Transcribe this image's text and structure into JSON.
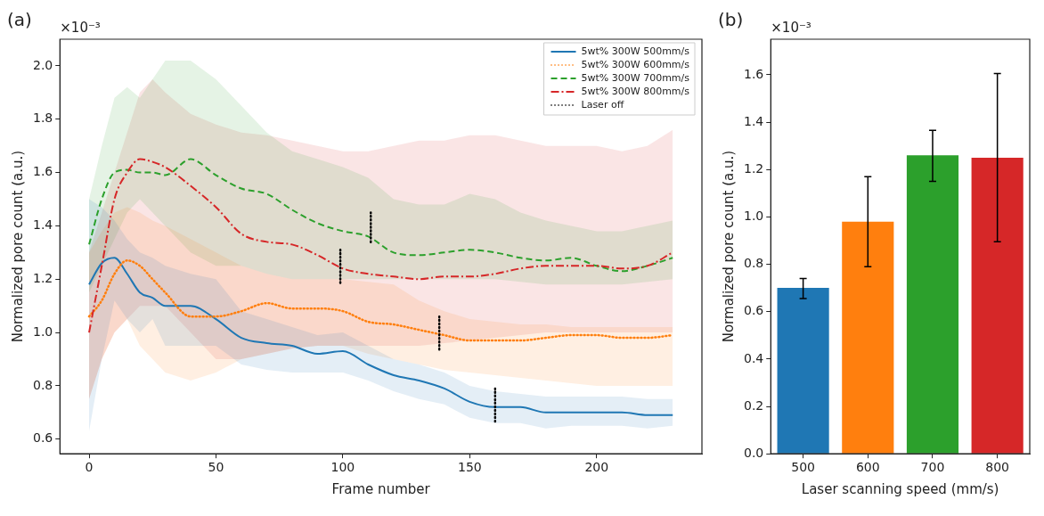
{
  "chart_data": [
    {
      "type": "line",
      "title": "(a)",
      "xlabel": "Frame number",
      "ylabel": "Normalized pore count (a.u.)",
      "annotations": [
        "×10⁻³"
      ],
      "x": [
        0,
        5,
        10,
        15,
        20,
        25,
        30,
        40,
        50,
        60,
        70,
        80,
        90,
        100,
        110,
        120,
        130,
        140,
        150,
        160,
        170,
        180,
        190,
        200,
        210,
        220,
        230
      ],
      "xlim": [
        -11.5,
        241.5
      ],
      "ylim": [
        0.545,
        2.1
      ],
      "xticks": [
        0,
        50,
        100,
        150,
        200
      ],
      "yticks": [
        0.6,
        0.8,
        {
          "value": 1,
          "label": "1.0"
        },
        1.2,
        1.4,
        1.6,
        1.8,
        {
          "value": 2,
          "label": "2.0"
        }
      ],
      "legend": "top right",
      "series": [
        {
          "name": "5wt% 300W 500mm/s",
          "color": "#1f77b4",
          "line_style": "solid",
          "values": [
            1.18,
            1.26,
            1.28,
            1.22,
            1.15,
            1.13,
            1.1,
            1.1,
            1.05,
            0.98,
            0.96,
            0.95,
            0.92,
            0.93,
            0.88,
            0.84,
            0.82,
            0.79,
            0.74,
            0.72,
            0.72,
            0.7,
            0.7,
            0.7,
            0.7,
            0.69,
            0.69
          ],
          "lower": [
            0.63,
            0.9,
            1.12,
            1.05,
            1.0,
            1.05,
            0.95,
            0.95,
            0.95,
            0.88,
            0.86,
            0.85,
            0.85,
            0.85,
            0.82,
            0.78,
            0.75,
            0.73,
            0.68,
            0.66,
            0.66,
            0.64,
            0.65,
            0.65,
            0.65,
            0.64,
            0.65
          ],
          "upper": [
            1.5,
            1.47,
            1.42,
            1.35,
            1.3,
            1.28,
            1.25,
            1.22,
            1.2,
            1.08,
            1.05,
            1.02,
            0.99,
            1.0,
            0.95,
            0.9,
            0.88,
            0.85,
            0.8,
            0.78,
            0.77,
            0.76,
            0.76,
            0.76,
            0.76,
            0.75,
            0.75
          ]
        },
        {
          "name": "5wt% 300W 600mm/s",
          "color": "#ff7f0e",
          "line_style": "dotted",
          "values": [
            1.06,
            1.12,
            1.22,
            1.27,
            1.25,
            1.2,
            1.15,
            1.06,
            1.06,
            1.08,
            1.11,
            1.09,
            1.09,
            1.08,
            1.04,
            1.03,
            1.01,
            0.99,
            0.97,
            0.97,
            0.97,
            0.98,
            0.99,
            0.99,
            0.98,
            0.98,
            0.99
          ],
          "lower": [
            0.75,
            0.9,
            1.0,
            1.05,
            0.95,
            0.9,
            0.85,
            0.82,
            0.85,
            0.9,
            0.92,
            0.94,
            0.95,
            0.95,
            0.92,
            0.9,
            0.88,
            0.86,
            0.85,
            0.84,
            0.83,
            0.82,
            0.81,
            0.8,
            0.8,
            0.8,
            0.8
          ],
          "upper": [
            1.3,
            1.38,
            1.45,
            1.47,
            1.45,
            1.42,
            1.4,
            1.35,
            1.3,
            1.25,
            1.22,
            1.2,
            1.2,
            1.2,
            1.19,
            1.18,
            1.12,
            1.08,
            1.05,
            1.04,
            1.03,
            1.03,
            1.02,
            1.02,
            1.02,
            1.02,
            1.02
          ]
        },
        {
          "name": "5wt% 300W 700mm/s",
          "color": "#2ca02c",
          "line_style": "dashed",
          "values": [
            1.33,
            1.5,
            1.6,
            1.61,
            1.6,
            1.6,
            1.59,
            1.65,
            1.59,
            1.54,
            1.52,
            1.46,
            1.41,
            1.38,
            1.36,
            1.3,
            1.29,
            1.3,
            1.31,
            1.3,
            1.28,
            1.27,
            1.28,
            1.25,
            1.23,
            1.25,
            1.28
          ],
          "lower": [
            1.15,
            1.25,
            1.35,
            1.45,
            1.5,
            1.45,
            1.4,
            1.3,
            1.25,
            1.25,
            1.22,
            1.2,
            1.2,
            1.2,
            1.2,
            1.2,
            1.2,
            1.2,
            1.2,
            1.2,
            1.19,
            1.18,
            1.18,
            1.18,
            1.18,
            1.19,
            1.2
          ],
          "upper": [
            1.5,
            1.7,
            1.88,
            1.92,
            1.88,
            1.95,
            2.02,
            2.02,
            1.95,
            1.85,
            1.75,
            1.68,
            1.65,
            1.62,
            1.58,
            1.5,
            1.48,
            1.48,
            1.52,
            1.5,
            1.45,
            1.42,
            1.4,
            1.38,
            1.38,
            1.4,
            1.42
          ]
        },
        {
          "name": "5wt% 300W 800mm/s",
          "color": "#d62728",
          "line_style": "dashdot",
          "values": [
            1.0,
            1.25,
            1.5,
            1.6,
            1.65,
            1.64,
            1.62,
            1.55,
            1.47,
            1.37,
            1.34,
            1.33,
            1.29,
            1.24,
            1.22,
            1.21,
            1.2,
            1.21,
            1.21,
            1.22,
            1.24,
            1.25,
            1.25,
            1.25,
            1.24,
            1.25,
            1.3
          ],
          "lower": [
            0.75,
            0.9,
            1.0,
            1.05,
            1.1,
            1.1,
            1.1,
            1.0,
            0.9,
            0.9,
            0.92,
            0.94,
            0.95,
            0.95,
            0.95,
            0.95,
            0.95,
            0.96,
            0.97,
            0.98,
            0.99,
            1.0,
            1.0,
            1.0,
            1.0,
            1.0,
            1.0
          ],
          "upper": [
            1.3,
            1.45,
            1.6,
            1.75,
            1.9,
            1.95,
            1.9,
            1.82,
            1.78,
            1.75,
            1.74,
            1.72,
            1.7,
            1.68,
            1.68,
            1.7,
            1.72,
            1.72,
            1.74,
            1.74,
            1.72,
            1.7,
            1.7,
            1.7,
            1.68,
            1.7,
            1.76
          ]
        },
        {
          "name": "Laser off",
          "color": "#000000",
          "line_style": "dotted",
          "x": [
            99,
            99,
            105,
            111,
            111,
            124,
            138,
            138,
            149,
            160,
            160
          ],
          "values": [
            1.31,
            1.18,
            null,
            1.45,
            1.33,
            null,
            1.06,
            0.93,
            null,
            0.79,
            0.66
          ]
        }
      ]
    },
    {
      "type": "bar",
      "title": "(b)",
      "xlabel": "Laser scanning speed (mm/s)",
      "ylabel": "Normalized pore count (a.u.)",
      "annotations": [
        "×10⁻³"
      ],
      "categories": [
        "500",
        "600",
        "700",
        "800"
      ],
      "values": [
        0.7,
        0.98,
        1.26,
        1.25
      ],
      "colors": [
        "#1f77b4",
        "#ff7f0e",
        "#2ca02c",
        "#d62728"
      ],
      "errors": [
        [
          0.655,
          0.74
        ],
        [
          0.79,
          1.17
        ],
        [
          1.15,
          1.365
        ],
        [
          0.895,
          1.605
        ]
      ],
      "ylim": [
        0,
        1.75
      ],
      "yticks": [
        {
          "value": 0,
          "label": "0.0"
        },
        0.2,
        0.4,
        0.6,
        0.8,
        {
          "value": 1,
          "label": "1.0"
        },
        1.2,
        1.4,
        1.6
      ]
    }
  ]
}
